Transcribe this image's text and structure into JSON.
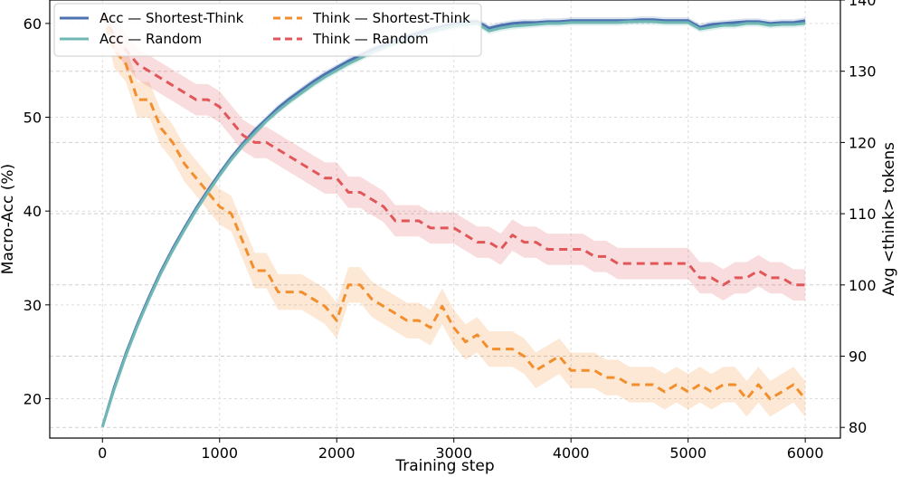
{
  "chart_data": {
    "type": "line",
    "title": "",
    "xlabel": "Training step",
    "ylabel_left": "Macro-Acc (%)",
    "ylabel_right": "Avg <think> tokens",
    "xlim": [
      -450,
      6300
    ],
    "ylim_left": [
      15.8,
      62.5
    ],
    "ylim_right": [
      78.5,
      140
    ],
    "xticks": [
      0,
      1000,
      2000,
      3000,
      4000,
      5000,
      6000
    ],
    "yticks_left": [
      20,
      30,
      40,
      50,
      60
    ],
    "yticks_right": [
      80,
      90,
      100,
      110,
      120,
      130,
      140
    ],
    "grid": true,
    "legend_position": "top-left",
    "x": [
      0,
      100,
      200,
      300,
      400,
      500,
      600,
      700,
      800,
      900,
      1000,
      1100,
      1200,
      1300,
      1400,
      1500,
      1600,
      1700,
      1800,
      1900,
      2000,
      2100,
      2200,
      2300,
      2400,
      2500,
      2600,
      2700,
      2800,
      2900,
      3000,
      3100,
      3200,
      3300,
      3400,
      3500,
      3600,
      3700,
      3800,
      3900,
      4000,
      4100,
      4200,
      4300,
      4400,
      4500,
      4600,
      4700,
      4800,
      4900,
      5000,
      5100,
      5200,
      5300,
      5400,
      5500,
      5600,
      5700,
      5800,
      5900,
      6000
    ],
    "series": [
      {
        "name": "Acc — Shortest-Think",
        "axis": "left",
        "color": "#4c72b0",
        "dash": "solid",
        "values": [
          17.0,
          21.2,
          24.8,
          28.0,
          30.9,
          33.6,
          36.0,
          38.2,
          40.3,
          42.2,
          44.0,
          45.7,
          47.2,
          48.6,
          49.8,
          51.0,
          52.0,
          52.9,
          53.8,
          54.6,
          55.3,
          56.0,
          56.6,
          57.2,
          57.7,
          58.2,
          58.6,
          59.0,
          59.4,
          59.7,
          60.0,
          60.2,
          60.2,
          59.5,
          59.8,
          60.0,
          60.1,
          60.1,
          60.2,
          60.2,
          60.3,
          60.3,
          60.3,
          60.3,
          60.3,
          60.3,
          60.4,
          60.4,
          60.3,
          60.3,
          60.3,
          59.6,
          59.9,
          60.0,
          60.1,
          60.2,
          60.2,
          60.0,
          60.1,
          60.1,
          60.3
        ],
        "band": 0.35
      },
      {
        "name": "Acc — Random",
        "axis": "left",
        "color": "#6fb8b3",
        "dash": "solid",
        "values": [
          17.0,
          21.0,
          24.6,
          27.8,
          30.7,
          33.4,
          35.8,
          38.0,
          40.1,
          42.0,
          43.8,
          45.5,
          47.0,
          48.3,
          49.6,
          50.7,
          51.7,
          52.6,
          53.5,
          54.3,
          55.0,
          55.7,
          56.3,
          56.9,
          57.4,
          57.9,
          58.3,
          58.7,
          59.1,
          59.4,
          59.7,
          59.9,
          60.0,
          59.2,
          59.5,
          59.7,
          59.8,
          59.9,
          60.0,
          60.0,
          60.1,
          60.1,
          60.1,
          60.1,
          60.1,
          60.2,
          60.2,
          60.2,
          60.1,
          60.1,
          60.1,
          59.4,
          59.6,
          59.8,
          59.8,
          60.0,
          60.0,
          59.8,
          59.9,
          59.9,
          60.0
        ],
        "band": 0.35
      },
      {
        "name": "Think — Shortest-Think",
        "axis": "right",
        "color": "#f28e2b",
        "dash": "dashed",
        "values": [
          138,
          133,
          131,
          126,
          126,
          122,
          120,
          117,
          115,
          113,
          111,
          110,
          106,
          102,
          102,
          99,
          99,
          99,
          98,
          97,
          95,
          100,
          100,
          98,
          97,
          96,
          95,
          95,
          94,
          97,
          94,
          92,
          93,
          91,
          91,
          91,
          90,
          88,
          89,
          90,
          88,
          88,
          88,
          87,
          87,
          86,
          86,
          86,
          85,
          86,
          85,
          86,
          85,
          86,
          86,
          84,
          86,
          84,
          85,
          86,
          84
        ],
        "band": 2.5
      },
      {
        "name": "Think — Random",
        "axis": "right",
        "color": "#e15759",
        "dash": "dashed",
        "values": [
          138,
          135,
          133,
          131,
          130,
          129,
          128,
          127,
          126,
          126,
          125,
          123,
          121,
          120,
          120,
          119,
          118,
          117,
          116,
          115,
          115,
          113,
          113,
          112,
          111,
          109,
          109,
          109,
          108,
          108,
          108,
          107,
          106,
          106,
          105,
          107,
          106,
          106,
          105,
          105,
          105,
          105,
          104,
          104,
          103,
          103,
          103,
          103,
          103,
          103,
          103,
          101,
          101,
          100,
          101,
          101,
          102,
          101,
          101,
          100,
          100
        ],
        "band": 2.2
      }
    ]
  }
}
